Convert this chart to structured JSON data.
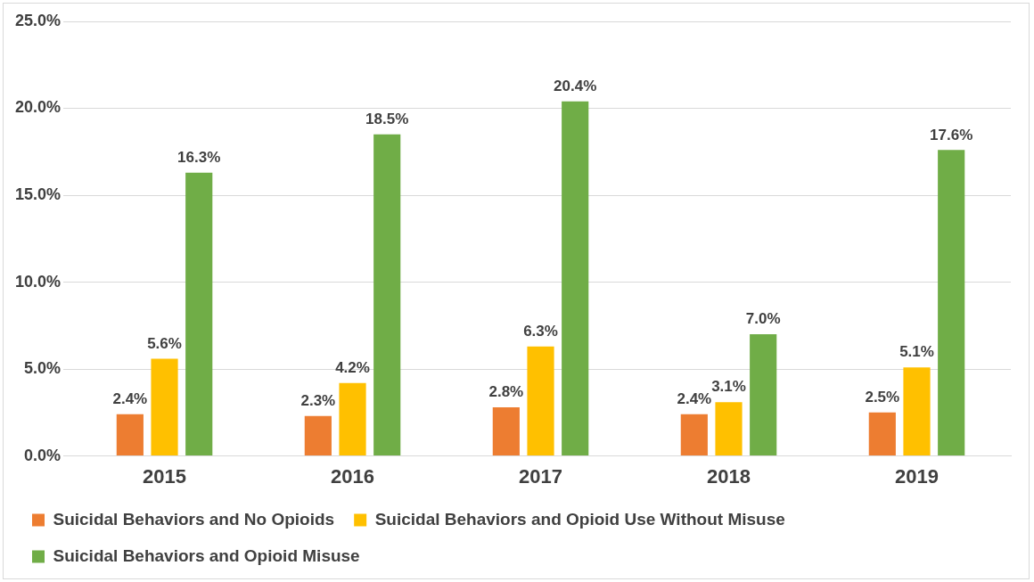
{
  "chart_data": {
    "type": "bar",
    "categories": [
      "2015",
      "2016",
      "2017",
      "2018",
      "2019"
    ],
    "series": [
      {
        "name": "Suicidal Behaviors and No Opioids",
        "color": "#ed7d31",
        "values": [
          2.4,
          2.3,
          2.8,
          2.4,
          2.5
        ],
        "value_labels": [
          "2.4%",
          "2.3%",
          "2.8%",
          "2.4%",
          "2.5%"
        ]
      },
      {
        "name": "Suicidal Behaviors and Opioid Use Without Misuse",
        "color": "#ffc000",
        "values": [
          5.6,
          4.2,
          6.3,
          3.1,
          5.1
        ],
        "value_labels": [
          "5.6%",
          "4.2%",
          "6.3%",
          "3.1%",
          "5.1%"
        ]
      },
      {
        "name": "Suicidal Behaviors and Opioid Misuse",
        "color": "#70ad47",
        "values": [
          16.3,
          18.5,
          20.4,
          7.0,
          17.6
        ],
        "value_labels": [
          "16.3%",
          "18.5%",
          "20.4%",
          "7.0%",
          "17.6%"
        ]
      }
    ],
    "ylim": [
      0,
      25
    ],
    "yticks": [
      {
        "value": 0,
        "label": "0.0%"
      },
      {
        "value": 5,
        "label": "5.0%"
      },
      {
        "value": 10,
        "label": "10.0%"
      },
      {
        "value": 15,
        "label": "15.0%"
      },
      {
        "value": 20,
        "label": "20.0%"
      },
      {
        "value": 25,
        "label": "25.0%"
      }
    ],
    "grid": "y",
    "legend": "bottom"
  }
}
